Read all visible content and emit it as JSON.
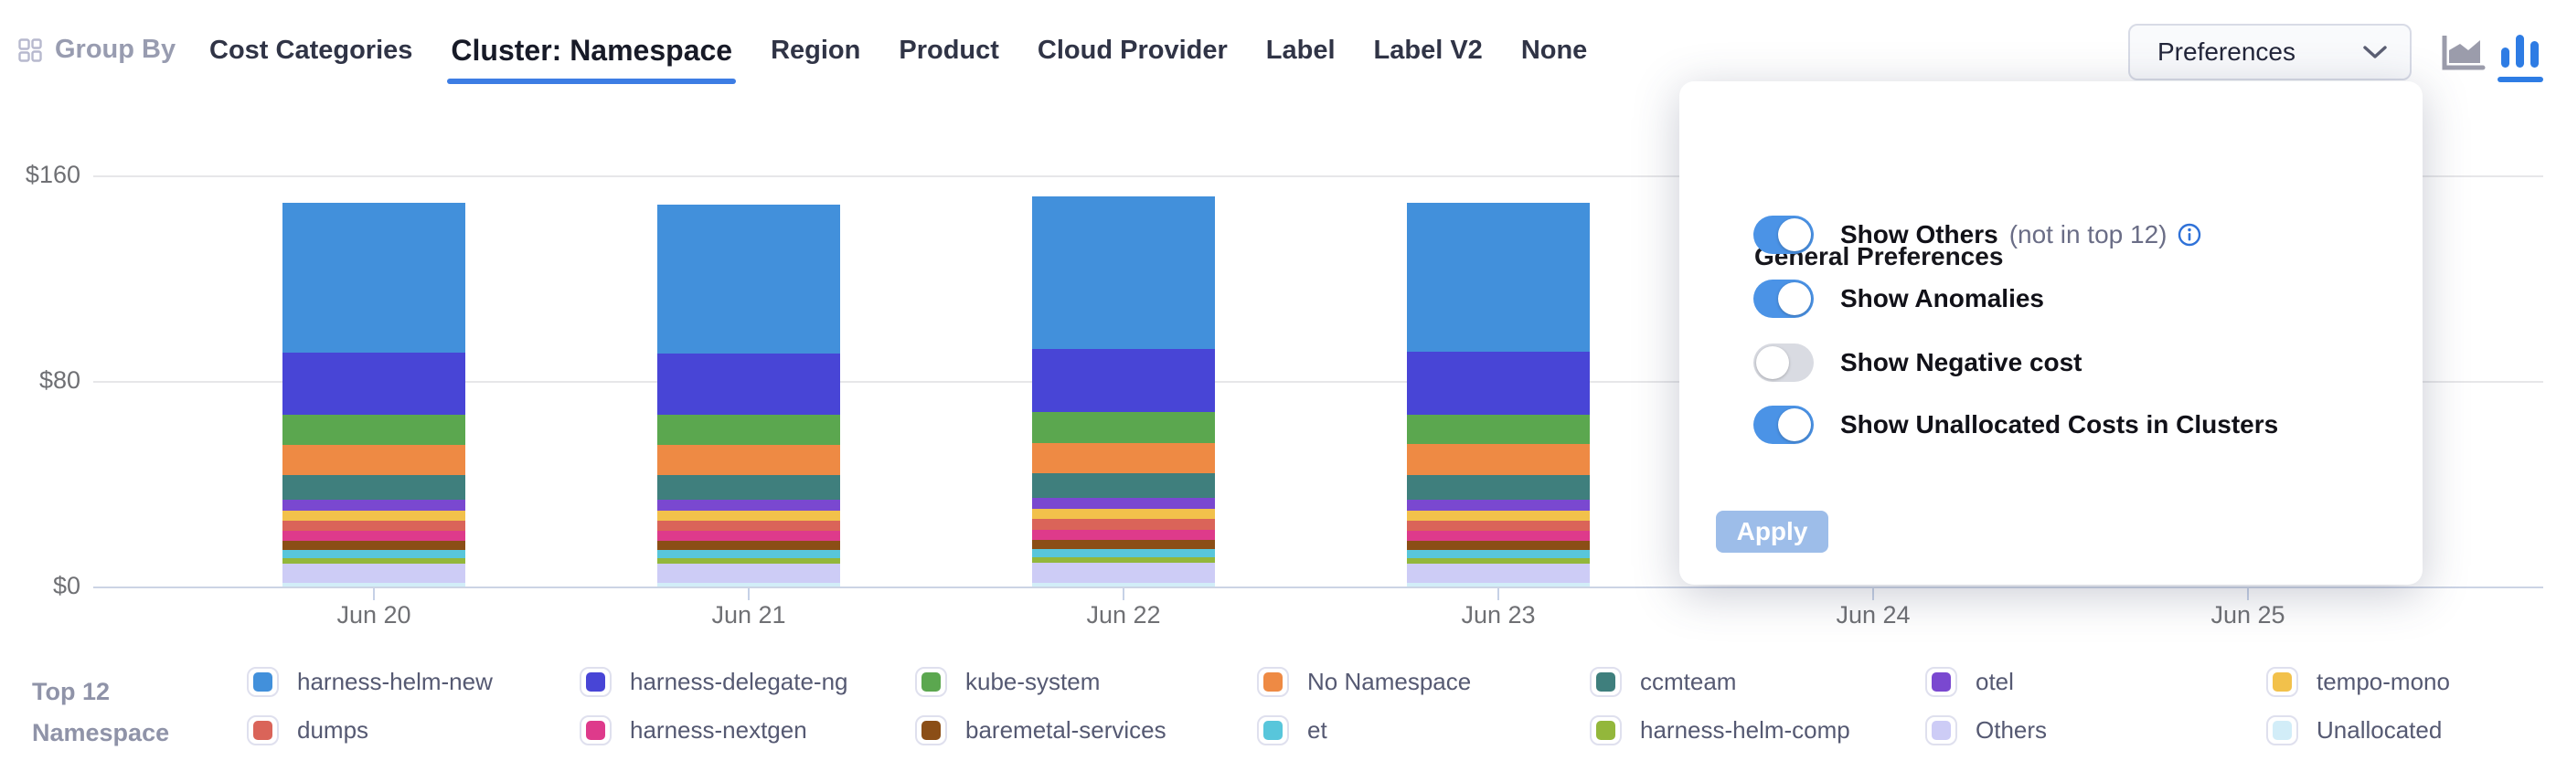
{
  "theme": {
    "accent_blue": "#2e7ce4",
    "toggle_on_blue": "#4b93e6",
    "apply_button_blue": "#9dbde9",
    "tab_underline_blue": "#3d7de4"
  },
  "header": {
    "group_by_label": "Group By",
    "tabs": [
      {
        "label": "Cost Categories",
        "active": false
      },
      {
        "label": "Cluster: Namespace",
        "active": true
      },
      {
        "label": "Region",
        "active": false
      },
      {
        "label": "Product",
        "active": false
      },
      {
        "label": "Cloud Provider",
        "active": false
      },
      {
        "label": "Label",
        "active": false
      },
      {
        "label": "Label V2",
        "active": false
      },
      {
        "label": "None",
        "active": false
      }
    ],
    "preferences_button_label": "Preferences",
    "chart_type_icons": [
      {
        "name": "area-chart",
        "active": false
      },
      {
        "name": "bar-chart",
        "active": true
      }
    ]
  },
  "preferences_panel": {
    "title": "General Preferences",
    "toggles": [
      {
        "label": "Show Others",
        "suffix": "(not in top 12)",
        "has_info": true,
        "on": true
      },
      {
        "label": "Show Anomalies",
        "suffix": "",
        "has_info": false,
        "on": true
      },
      {
        "label": "Show Negative cost",
        "suffix": "",
        "has_info": false,
        "on": false
      },
      {
        "label": "Show Unallocated Costs in Clusters",
        "suffix": "",
        "has_info": false,
        "on": true
      }
    ],
    "apply_label": "Apply"
  },
  "legend": {
    "title_line1": "Top 12",
    "title_line2": "Namespace",
    "items": [
      {
        "label": "harness-helm-new",
        "color": "#4290db"
      },
      {
        "label": "dumps",
        "color": "#da6459"
      },
      {
        "label": "harness-delegate-ng",
        "color": "#4845d6"
      },
      {
        "label": "harness-nextgen",
        "color": "#de3a8b"
      },
      {
        "label": "kube-system",
        "color": "#5ba74f"
      },
      {
        "label": "baremetal-services",
        "color": "#8b4e16"
      },
      {
        "label": "No Namespace",
        "color": "#ee8a44"
      },
      {
        "label": "et",
        "color": "#58c6db"
      },
      {
        "label": "ccmteam",
        "color": "#3f7f7d"
      },
      {
        "label": "harness-helm-comp",
        "color": "#93b73b"
      },
      {
        "label": "otel",
        "color": "#7a48d0"
      },
      {
        "label": "Others",
        "color": "#cdccf6"
      },
      {
        "label": "tempo-mono",
        "color": "#f2c14b"
      },
      {
        "label": "Unallocated",
        "color": "#d2edf8"
      }
    ]
  },
  "chart_data": {
    "type": "bar",
    "stacked": true,
    "categories": [
      "Jun 20",
      "Jun 21",
      "Jun 22",
      "Jun 23",
      "Jun 24",
      "Jun 25"
    ],
    "yticks": [
      "$0",
      "$80",
      "$160"
    ],
    "ylim": [
      0,
      160
    ],
    "grid": "horizontal",
    "legend_position": "bottom",
    "series_bottom_to_top": [
      {
        "name": "Unallocated",
        "color": "#d2edf8",
        "values": [
          1.4,
          1.4,
          1.5,
          1.4,
          null,
          null
        ]
      },
      {
        "name": "Others",
        "color": "#cdccf6",
        "values": [
          7.5,
          7.5,
          7.8,
          7.6,
          null,
          null
        ]
      },
      {
        "name": "harness-helm-comp",
        "color": "#93b73b",
        "values": [
          2.1,
          2.1,
          2.1,
          2.1,
          null,
          null
        ]
      },
      {
        "name": "et",
        "color": "#58c6db",
        "values": [
          3.2,
          3.2,
          3.3,
          3.2,
          null,
          null
        ]
      },
      {
        "name": "baremetal-services",
        "color": "#8b4e16",
        "values": [
          3.6,
          3.6,
          3.6,
          3.6,
          null,
          null
        ]
      },
      {
        "name": "harness-nextgen",
        "color": "#de3a8b",
        "values": [
          3.9,
          3.8,
          3.9,
          3.9,
          null,
          null
        ]
      },
      {
        "name": "dumps",
        "color": "#da6459",
        "values": [
          3.9,
          4.0,
          4.0,
          3.9,
          null,
          null
        ]
      },
      {
        "name": "tempo-mono",
        "color": "#f2c14b",
        "values": [
          3.9,
          3.9,
          3.9,
          3.9,
          null,
          null
        ]
      },
      {
        "name": "otel",
        "color": "#7a48d0",
        "values": [
          4.3,
          4.3,
          4.4,
          4.3,
          null,
          null
        ]
      },
      {
        "name": "ccmteam",
        "color": "#3f7f7d",
        "values": [
          9.6,
          9.5,
          9.7,
          9.6,
          null,
          null
        ]
      },
      {
        "name": "No Namespace",
        "color": "#ee8a44",
        "values": [
          11.7,
          11.8,
          11.8,
          11.8,
          null,
          null
        ]
      },
      {
        "name": "kube-system",
        "color": "#5ba74f",
        "values": [
          11.7,
          11.6,
          11.9,
          11.7,
          null,
          null
        ]
      },
      {
        "name": "harness-delegate-ng",
        "color": "#4845d6",
        "values": [
          24.2,
          24.0,
          24.5,
          24.3,
          null,
          null
        ]
      },
      {
        "name": "harness-helm-new",
        "color": "#4290db",
        "values": [
          58.3,
          57.9,
          59.5,
          58.2,
          null,
          null
        ]
      }
    ]
  }
}
